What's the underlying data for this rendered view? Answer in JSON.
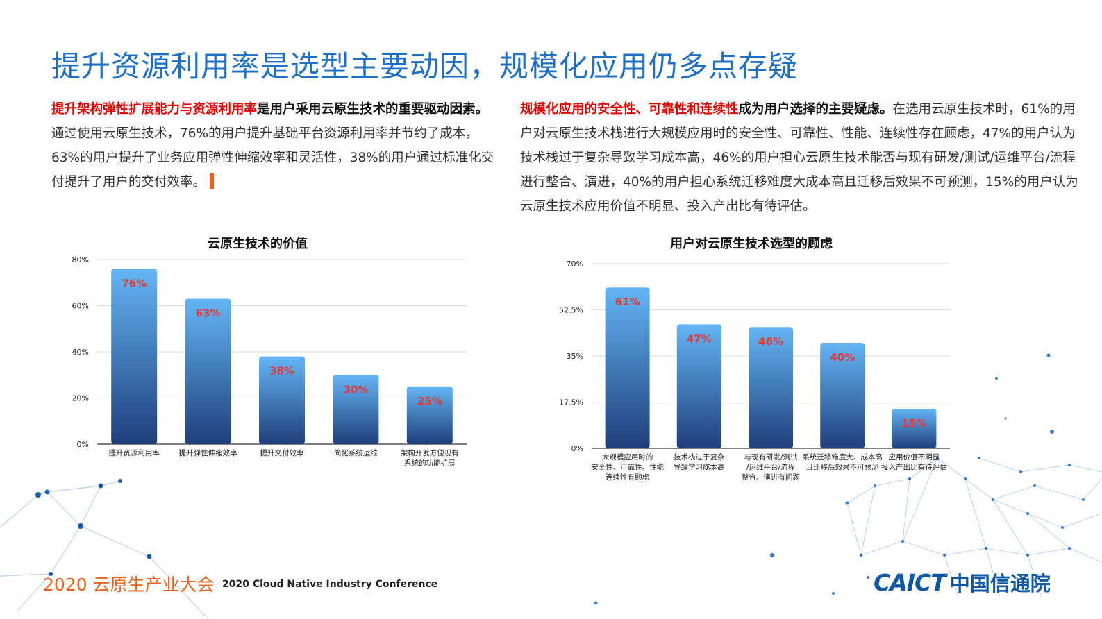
{
  "title": "提升资源利用率是选型主要动因，规模化应用仍多点存疑",
  "left_text": {
    "red": "提升架构弹性扩展能力与资源利用率",
    "bold": "是用户采用云原生技术的重要驱动因素。",
    "normal": "通过使用云原生技术，76%的用户提升基础平台资源利用率并节约了成本，63%的用户提升了业务应用弹性伸缩效率和灵活性，38%的用户通过标准化交付提升了用户的交付效率。"
  },
  "right_text": {
    "red": "规模化应用的安全性、可靠性和连续性",
    "bold": "成为用户选择的主要疑虑。",
    "normal": "在选用云原生技术时，61%的用户对云原生技术栈进行大规模应用时的安全性、可靠性、性能、连续性存在顾虑，47%的用户认为技术栈过于复杂导致学习成本高，46%的用户担心云原生技术能否与现有研发/测试/运维平台/流程进行整合、演进，40%的用户担心系统迁移难度大成本高且迁移后效果不可预测，15%的用户认为云原生技术应用价值不明显、投入产出比有待评估。"
  },
  "chart_data": [
    {
      "type": "bar",
      "title": "云原生技术的价值",
      "categories": [
        [
          "提升资源利用率"
        ],
        [
          "提升弹性伸缩效率"
        ],
        [
          "提升交付效率"
        ],
        [
          "简化系统运维"
        ],
        [
          "架构开发方便现有",
          "系统的功能扩展"
        ]
      ],
      "values": [
        76,
        63,
        38,
        30,
        25
      ],
      "value_labels": [
        "76%",
        "63%",
        "38%",
        "30%",
        "25%"
      ],
      "yticks": [
        0,
        20,
        40,
        60,
        80
      ],
      "ytick_labels": [
        "0%",
        "20%",
        "40%",
        "60%",
        "80%"
      ],
      "ylim": [
        0,
        80
      ],
      "grid": true
    },
    {
      "type": "bar",
      "title": "用户对云原生技术选型的顾虑",
      "categories": [
        [
          "大规模应用时的",
          "安全性、可靠性、性能",
          "连续性有顾虑"
        ],
        [
          "技术栈过于复杂",
          "导致学习成本高"
        ],
        [
          "与现有研发/测试",
          "/运维平台/流程",
          "整合、演进有问题"
        ],
        [
          "系统迁移难度大、成本高",
          "且迁移后效果不可预测"
        ],
        [
          "应用价值不明显",
          "投入产出比有待评估"
        ]
      ],
      "values": [
        61,
        47,
        46,
        40,
        15
      ],
      "value_labels": [
        "61%",
        "47%",
        "46%",
        "40%",
        "15%"
      ],
      "yticks": [
        0,
        17.5,
        35,
        52.5,
        70
      ],
      "ytick_labels": [
        "0%",
        "17.5%",
        "35%",
        "52.5%",
        "70%"
      ],
      "ylim": [
        0,
        70
      ],
      "grid": true
    }
  ],
  "footer": {
    "cn": "2020 云原生产业大会",
    "en": "2020 Cloud Native Industry Conference"
  },
  "logo": {
    "mark": "CAICT",
    "cn": "中国信通院"
  },
  "colors": {
    "title": "#1f6fc5",
    "bar_top": "#64b5f6",
    "bar_bottom": "#1f3f7a",
    "value_label": "#e53935",
    "footer_accent": "#e8631e",
    "logo": "#0e58a8"
  }
}
